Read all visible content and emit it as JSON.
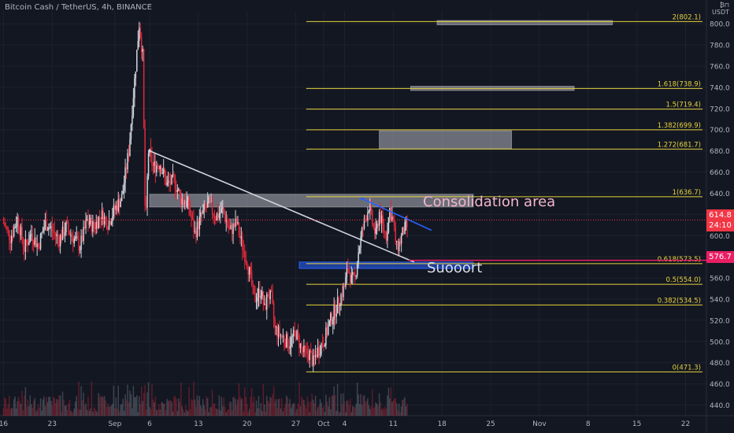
{
  "header": {
    "title": "Bitcoin Cash / TetherUS, 4h, BINANCE",
    "scale_top": "₿⊓",
    "scale_unit": "USDT"
  },
  "chart_data": {
    "type": "candlestick",
    "symbol": "BCHUSDT",
    "timeframe": "4h",
    "exchange": "BINANCE",
    "y_axis": {
      "ticks": [
        440,
        460,
        480,
        500,
        520,
        540,
        560,
        580,
        600,
        620,
        640,
        660,
        680,
        700,
        720,
        740,
        760,
        780,
        800
      ],
      "tick_labels": [
        "440.0",
        "460.0",
        "480.0",
        "500.0",
        "520.0",
        "540.0",
        "560.0",
        "580.0",
        "600.0",
        "620.0",
        "640.0",
        "660.0",
        "680.0",
        "700.0",
        "720.0",
        "740.0",
        "760.0",
        "780.0",
        "800.0"
      ],
      "range": [
        430,
        812
      ]
    },
    "x_axis": {
      "tick_labels": [
        "16",
        "23",
        "Sep",
        "6",
        "13",
        "20",
        "27",
        "Oct",
        "4",
        "11",
        "18",
        "25",
        "Nov",
        "8",
        "15",
        "22"
      ],
      "tick_days": [
        16,
        23,
        32,
        37,
        44,
        51,
        58,
        62,
        65,
        72,
        79,
        86,
        93,
        100,
        107,
        114
      ],
      "range_days": [
        15.5,
        117
      ]
    },
    "close_path": [
      [
        16,
        612
      ],
      [
        17,
        598
      ],
      [
        18,
        616
      ],
      [
        19,
        588
      ],
      [
        20,
        602
      ],
      [
        21,
        590
      ],
      [
        22,
        612
      ],
      [
        23,
        605
      ],
      [
        24,
        596
      ],
      [
        25,
        608
      ],
      [
        26,
        598
      ],
      [
        27,
        590
      ],
      [
        28,
        614
      ],
      [
        29,
        608
      ],
      [
        30,
        620
      ],
      [
        31,
        612
      ],
      [
        32,
        625
      ],
      [
        33,
        636
      ],
      [
        34,
        680
      ],
      [
        35,
        760
      ],
      [
        35.5,
        800
      ],
      [
        36,
        770
      ],
      [
        36.4,
        600
      ],
      [
        36.8,
        680
      ],
      [
        37.5,
        665
      ],
      [
        38.5,
        668
      ],
      [
        39.5,
        648
      ],
      [
        40.5,
        652
      ],
      [
        41.5,
        635
      ],
      [
        42.5,
        630
      ],
      [
        43.5,
        602
      ],
      [
        44.5,
        620
      ],
      [
        45.5,
        630
      ],
      [
        46.5,
        618
      ],
      [
        47.5,
        624
      ],
      [
        48.5,
        604
      ],
      [
        49.5,
        612
      ],
      [
        50,
        598
      ],
      [
        51,
        575
      ],
      [
        51.5,
        560
      ],
      [
        52,
        540
      ],
      [
        53,
        548
      ],
      [
        53.5,
        530
      ],
      [
        54,
        545
      ],
      [
        54.5,
        540
      ],
      [
        55,
        512
      ],
      [
        56,
        505
      ],
      [
        57,
        498
      ],
      [
        58,
        508
      ],
      [
        59,
        490
      ],
      [
        60,
        488
      ],
      [
        60.5,
        480
      ],
      [
        61,
        490
      ],
      [
        62,
        500
      ],
      [
        63,
        520
      ],
      [
        64,
        535
      ],
      [
        65,
        552
      ],
      [
        65.5,
        570
      ],
      [
        66,
        558
      ],
      [
        66.5,
        560
      ],
      [
        67,
        585
      ],
      [
        67.5,
        603
      ],
      [
        68,
        616
      ],
      [
        68.5,
        628
      ],
      [
        69,
        612
      ],
      [
        69.5,
        600
      ],
      [
        70,
        622
      ],
      [
        70.5,
        608
      ],
      [
        71,
        600
      ],
      [
        71.5,
        625
      ],
      [
        72,
        612
      ],
      [
        72.5,
        588
      ],
      [
        73,
        595
      ],
      [
        73.5,
        605
      ],
      [
        74,
        608
      ]
    ],
    "fib_levels": [
      {
        "ratio_label": "0(471.3)",
        "value": 471.3
      },
      {
        "ratio_label": "0.382(534.5)",
        "value": 534.5
      },
      {
        "ratio_label": "0.5(554.0)",
        "value": 554.0
      },
      {
        "ratio_label": "0.618(573.5)",
        "value": 573.5
      },
      {
        "ratio_label": "1(636.7)",
        "value": 636.7
      },
      {
        "ratio_label": "1.272(681.7)",
        "value": 681.7
      },
      {
        "ratio_label": "1.382(699.9)",
        "value": 699.9
      },
      {
        "ratio_label": "1.5(719.4)",
        "value": 719.4
      },
      {
        "ratio_label": "1.618(738.9)",
        "value": 738.9
      },
      {
        "ratio_label": "2(802.1)",
        "value": 802.1
      }
    ],
    "fib_start_day": 59.5,
    "zones": [
      {
        "name": "consolidation-zone",
        "day_from": 37,
        "day_to": 83.5,
        "price_low": 627,
        "price_high": 639
      },
      {
        "name": "target-zone-1",
        "day_from": 70,
        "day_to": 89,
        "price_low": 682,
        "price_high": 699
      },
      {
        "name": "target-zone-2",
        "day_from": 74.5,
        "day_to": 98,
        "price_low": 737,
        "price_high": 741
      },
      {
        "name": "target-zone-3",
        "day_from": 78.3,
        "day_to": 103.5,
        "price_low": 799,
        "price_high": 803
      },
      {
        "name": "support-zone",
        "day_from": 58.5,
        "day_to": 83.5,
        "price_low": 569,
        "price_high": 575
      }
    ],
    "trendlines": [
      {
        "name": "descending-trendline",
        "from": [
          37,
          680
        ],
        "to": [
          75,
          575
        ],
        "color": "#d1d4dc"
      },
      {
        "name": "channel-top-line",
        "from": [
          67.5,
          635
        ],
        "to": [
          77.5,
          605
        ],
        "color": "#2962ff"
      }
    ],
    "current_price": {
      "label": "614.8",
      "countdown": "24:10",
      "value": 614.8
    },
    "line_price": {
      "label": "576.7",
      "value": 576.7
    },
    "annotations": [
      {
        "text": "Consolidation area"
      },
      {
        "text": "Suooort"
      }
    ]
  }
}
